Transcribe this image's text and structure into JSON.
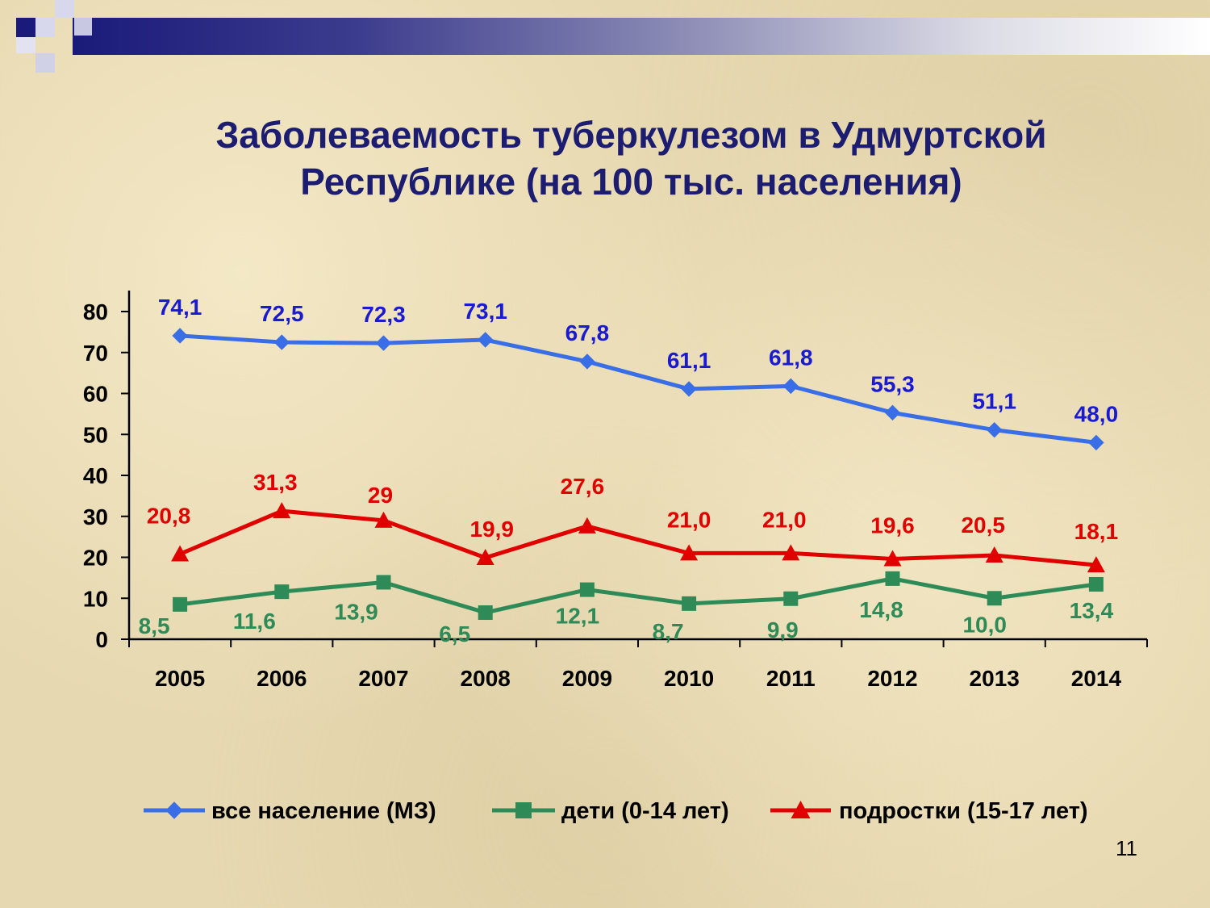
{
  "slide": {
    "title_line1": "Заболеваемость туберкулезом в Удмуртской",
    "title_line2": "Республике (на 100 тыс. населения)",
    "page_number": "11"
  },
  "colors": {
    "all_population": "#3a6ee6",
    "children": "#2e8b57",
    "teens": "#e10000",
    "header_dark": "#1a1a7a"
  },
  "chart_data": {
    "type": "line",
    "categories": [
      "2005",
      "2006",
      "2007",
      "2008",
      "2009",
      "2010",
      "2011",
      "2012",
      "2013",
      "2014"
    ],
    "ylim": [
      0,
      80
    ],
    "yticks": [
      0,
      10,
      20,
      30,
      40,
      50,
      60,
      70,
      80
    ],
    "grid": false,
    "legend_position": "bottom",
    "series": [
      {
        "name": "все население (МЗ)",
        "marker": "diamond",
        "color": "#3a6ee6",
        "label_color": "#1a1ad0",
        "values": [
          74.1,
          72.5,
          72.3,
          73.1,
          67.8,
          61.1,
          61.8,
          55.3,
          51.1,
          48.0
        ],
        "labels": [
          "74,1",
          "72,5",
          "72,3",
          "73,1",
          "67,8",
          "61,1",
          "61,8",
          "55,3",
          "51,1",
          "48,0"
        ]
      },
      {
        "name": "дети (0-14 лет)",
        "marker": "square",
        "color": "#2e8b57",
        "label_color": "#2e8b57",
        "values": [
          8.5,
          11.6,
          13.9,
          6.5,
          12.1,
          8.7,
          9.9,
          14.8,
          10.0,
          13.4
        ],
        "labels": [
          "8,5",
          "11,6",
          "13,9",
          "6,5",
          "12,1",
          "8,7",
          "9,9",
          "14,8",
          "10,0",
          "13,4"
        ]
      },
      {
        "name": "подростки (15-17 лет)",
        "marker": "triangle",
        "color": "#e10000",
        "label_color": "#e10000",
        "values": [
          20.8,
          31.3,
          29,
          19.9,
          27.6,
          21.0,
          21.0,
          19.6,
          20.5,
          18.1
        ],
        "labels": [
          "20,8",
          "31,3",
          "29",
          "19,9",
          "27,6",
          "21,0",
          "21,0",
          "19,6",
          "20,5",
          "18,1"
        ]
      }
    ]
  }
}
